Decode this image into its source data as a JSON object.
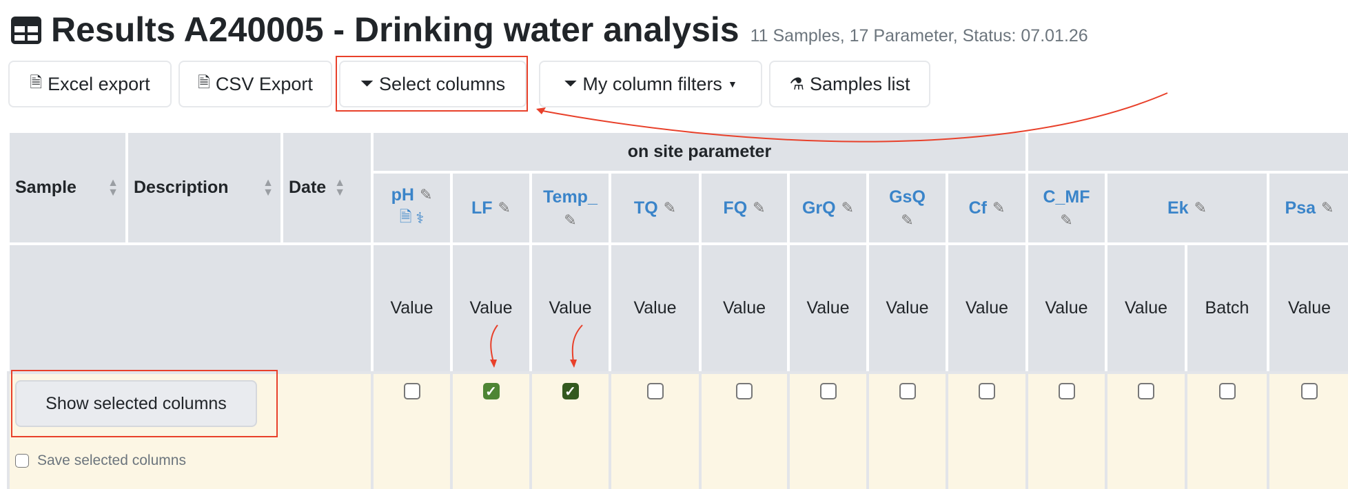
{
  "header": {
    "title": "Results A240005 - Drinking water analysis",
    "subtitle": "11 Samples, 17 Parameter, Status: 07.01.26"
  },
  "toolbar": {
    "excel_export": "Excel export",
    "csv_export": "CSV Export",
    "select_columns": "Select columns",
    "my_column_filters": "My column filters",
    "samples_list": "Samples list"
  },
  "table": {
    "fixed_columns": [
      "Sample",
      "Description",
      "Date"
    ],
    "groups": [
      {
        "label": "on site parameter"
      },
      {
        "label": ""
      }
    ],
    "parameters": [
      {
        "name": "pH",
        "subcolumns": [
          {
            "label": "Value",
            "checked": false
          }
        ],
        "extra_icons": [
          "document-icon",
          "stethoscope-icon"
        ]
      },
      {
        "name": "LF",
        "subcolumns": [
          {
            "label": "Value",
            "checked": true
          }
        ]
      },
      {
        "name": "Temp_",
        "subcolumns": [
          {
            "label": "Value",
            "checked": true
          }
        ]
      },
      {
        "name": "TQ",
        "subcolumns": [
          {
            "label": "Value",
            "checked": false
          }
        ]
      },
      {
        "name": "FQ",
        "subcolumns": [
          {
            "label": "Value",
            "checked": false
          }
        ]
      },
      {
        "name": "GrQ",
        "subcolumns": [
          {
            "label": "Value",
            "checked": false
          }
        ]
      },
      {
        "name": "GsQ",
        "subcolumns": [
          {
            "label": "Value",
            "checked": false
          }
        ]
      },
      {
        "name": "Cf",
        "subcolumns": [
          {
            "label": "Value",
            "checked": false
          }
        ]
      },
      {
        "name": "C_MF",
        "subcolumns": [
          {
            "label": "Value",
            "checked": false
          }
        ]
      },
      {
        "name": "Ek",
        "subcolumns": [
          {
            "label": "Value",
            "checked": false
          },
          {
            "label": "Batch",
            "checked": false
          }
        ]
      },
      {
        "name": "Psa",
        "subcolumns": [
          {
            "label": "Value",
            "checked": false
          }
        ]
      }
    ],
    "show_selected_columns": "Show selected columns",
    "save_selected_columns": "Save selected columns",
    "save_selected_checked": false
  },
  "colors": {
    "checked_light": "#4e8534",
    "checked_dark": "#33591f",
    "link": "#3a84c9",
    "annotation": "#e8402a",
    "selection_row": "#fcf6e4"
  }
}
